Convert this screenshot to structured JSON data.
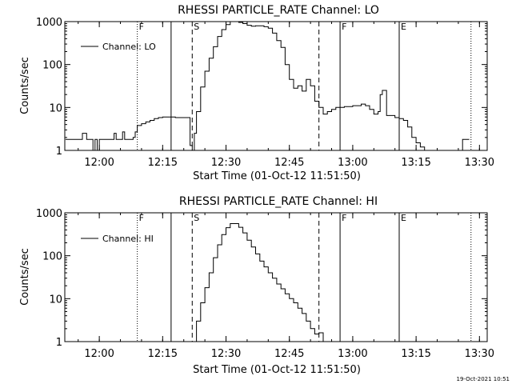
{
  "timestamp": "19-Oct-2021 10:51",
  "chart_data": [
    {
      "type": "line",
      "title": "RHESSI PARTICLE_RATE Channel: LO",
      "xlabel": "Start Time (01-Oct-12 11:51:50)",
      "ylabel": "Counts/sec",
      "yscale": "log",
      "xlim": [
        "11:51:50",
        "13:31:50"
      ],
      "ylim": [
        1,
        1000
      ],
      "x_ticks": [
        "12:00",
        "12:15",
        "12:30",
        "12:45",
        "13:00",
        "13:15",
        "13:30"
      ],
      "y_ticks": [
        "1",
        "10",
        "100",
        "1000"
      ],
      "legend": {
        "label": "Channel: LO",
        "placement": "top-left"
      },
      "markers": [
        {
          "time": "12:09",
          "style": "dotted",
          "label": "F"
        },
        {
          "time": "12:17",
          "style": "solid",
          "label": ""
        },
        {
          "time": "12:22",
          "style": "dashed",
          "label": "S"
        },
        {
          "time": "12:52",
          "style": "dashed",
          "label": ""
        },
        {
          "time": "12:57",
          "style": "solid",
          "label": "F"
        },
        {
          "time": "13:11",
          "style": "solid",
          "label": "E"
        },
        {
          "time": "13:28",
          "style": "dotted",
          "label": ""
        }
      ],
      "series": [
        {
          "name": "Channel: LO",
          "x": [
            "11:52",
            "11:53",
            "11:54",
            "11:55",
            "11:56",
            "11:57",
            "11:58",
            "11:58:30",
            "11:59",
            "11:59:30",
            "12:00",
            "12:01",
            "12:02",
            "12:03",
            "12:03:30",
            "12:04",
            "12:05",
            "12:05:30",
            "12:06",
            "12:07",
            "12:08",
            "12:08:30",
            "12:09",
            "12:10",
            "12:11",
            "12:12",
            "12:13",
            "12:14",
            "12:15",
            "12:16",
            "12:17",
            "12:18",
            "12:19",
            "12:20",
            "12:21",
            "12:21:30",
            "12:22",
            "12:22:30",
            "12:23",
            "12:24",
            "12:25",
            "12:26",
            "12:27",
            "12:28",
            "12:29",
            "12:30",
            "12:31",
            "12:32",
            "12:33",
            "12:34",
            "12:35",
            "12:36",
            "12:37",
            "12:38",
            "12:39",
            "12:40",
            "12:41",
            "12:42",
            "12:43",
            "12:44",
            "12:45",
            "12:46",
            "12:47",
            "12:48",
            "12:49",
            "12:50",
            "12:51",
            "12:52",
            "12:53",
            "12:54",
            "12:55",
            "12:56",
            "12:57",
            "12:58",
            "12:59",
            "13:00",
            "13:01",
            "13:02",
            "13:03",
            "13:04",
            "13:05",
            "13:06",
            "13:06:30",
            "13:07",
            "13:08",
            "13:09",
            "13:10",
            "13:11",
            "13:12",
            "13:13",
            "13:14",
            "13:15",
            "13:16",
            "13:17",
            "13:18",
            "13:19",
            "13:20",
            "13:21",
            "13:22",
            "13:23",
            "13:24",
            "13:25",
            "13:26",
            "13:27"
          ],
          "y": [
            1.8,
            1.8,
            1.8,
            1.8,
            2.5,
            1.8,
            1.8,
            1.0,
            1.8,
            1.0,
            1.8,
            1.8,
            1.8,
            1.8,
            2.5,
            1.8,
            1.8,
            2.7,
            1.8,
            1.8,
            2.0,
            2.7,
            3.8,
            4.2,
            4.6,
            5.0,
            5.5,
            5.8,
            6.0,
            6.0,
            6.0,
            5.8,
            5.8,
            5.8,
            5.8,
            1.3,
            1.0,
            2.5,
            8,
            30,
            70,
            140,
            260,
            450,
            650,
            850,
            1000,
            1000,
            960,
            900,
            820,
            780,
            800,
            800,
            760,
            700,
            540,
            360,
            250,
            100,
            45,
            28,
            32,
            24,
            45,
            32,
            14,
            10,
            7,
            8,
            9,
            10,
            10,
            10.5,
            10.5,
            11,
            11,
            12,
            11,
            9,
            7,
            8,
            20,
            25,
            6.5,
            6.5,
            5.8,
            5.5,
            5.0,
            3.5,
            2.0,
            1.5,
            1.2,
            1.0,
            1.0,
            1.0,
            1.0,
            1.0,
            1.0,
            1.0,
            1.0,
            1.0,
            1.8,
            1.8
          ]
        }
      ]
    },
    {
      "type": "line",
      "title": "RHESSI PARTICLE_RATE Channel: HI",
      "xlabel": "Start Time (01-Oct-12 11:51:50)",
      "ylabel": "Counts/sec",
      "yscale": "log",
      "xlim": [
        "11:51:50",
        "13:31:50"
      ],
      "ylim": [
        1,
        1000
      ],
      "x_ticks": [
        "12:00",
        "12:15",
        "12:30",
        "12:45",
        "13:00",
        "13:15",
        "13:30"
      ],
      "y_ticks": [
        "1",
        "10",
        "100",
        "1000"
      ],
      "legend": {
        "label": "Channel: HI",
        "placement": "top-left"
      },
      "markers": [
        {
          "time": "12:09",
          "style": "dotted",
          "label": "F"
        },
        {
          "time": "12:17",
          "style": "solid",
          "label": ""
        },
        {
          "time": "12:22",
          "style": "dashed",
          "label": "S"
        },
        {
          "time": "12:52",
          "style": "dashed",
          "label": ""
        },
        {
          "time": "12:57",
          "style": "solid",
          "label": "F"
        },
        {
          "time": "13:11",
          "style": "solid",
          "label": "E"
        },
        {
          "time": "13:28",
          "style": "dotted",
          "label": ""
        }
      ],
      "series": [
        {
          "name": "Channel: HI",
          "x": [
            "12:22",
            "12:23",
            "12:24",
            "12:25",
            "12:26",
            "12:27",
            "12:28",
            "12:29",
            "12:30",
            "12:31",
            "12:32",
            "12:33",
            "12:34",
            "12:35",
            "12:36",
            "12:37",
            "12:38",
            "12:39",
            "12:40",
            "12:41",
            "12:42",
            "12:43",
            "12:44",
            "12:45",
            "12:46",
            "12:47",
            "12:48",
            "12:49",
            "12:50",
            "12:51",
            "12:52",
            "12:53"
          ],
          "y": [
            1,
            3,
            8,
            18,
            40,
            90,
            180,
            310,
            450,
            560,
            560,
            460,
            340,
            230,
            160,
            110,
            75,
            55,
            40,
            30,
            22,
            17,
            13,
            10,
            8,
            6,
            4.5,
            3,
            2,
            1.5,
            1.6,
            1.0
          ]
        }
      ]
    }
  ]
}
